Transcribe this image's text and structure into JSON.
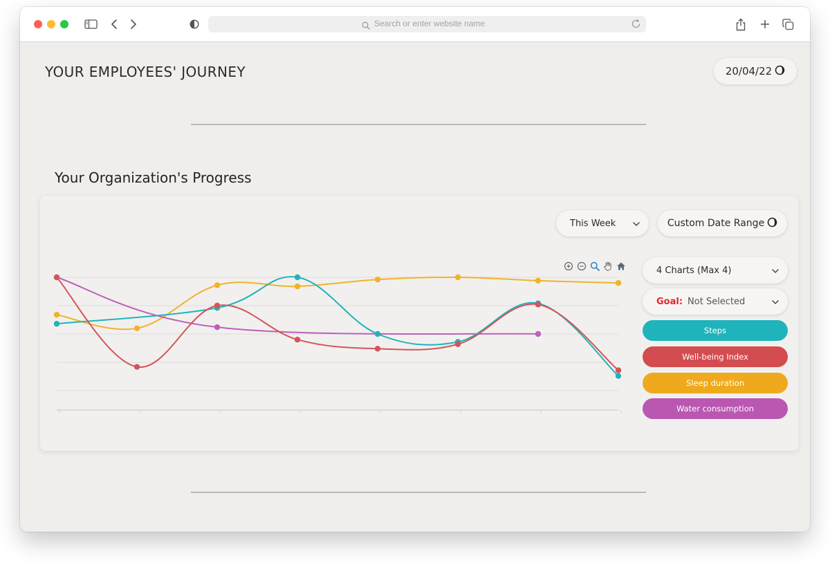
{
  "browser": {
    "url_placeholder": "Search or enter website name"
  },
  "header": {
    "title": "YOUR EMPLOYEES' JOURNEY",
    "date": "20/04/22"
  },
  "section": {
    "title": "Your Organization's Progress"
  },
  "controls": {
    "period_select": "This Week",
    "custom_range": "Custom Date Range",
    "charts_select": "4 Charts (Max 4)",
    "goal_label": "Goal:",
    "goal_value": "Not Selected"
  },
  "series_buttons": [
    {
      "label": "Steps",
      "color": "#1fb4bc"
    },
    {
      "label": "Well-being Index",
      "color": "#d34c4f"
    },
    {
      "label": "Sleep duration",
      "color": "#eea91c"
    },
    {
      "label": "Water consumption",
      "color": "#b957b1"
    }
  ],
  "chart_data": {
    "type": "line",
    "x": [
      1,
      2,
      3,
      4,
      5,
      6,
      7,
      8
    ],
    "ylim": [
      0,
      100
    ],
    "grid": true,
    "series": [
      {
        "key": "steps",
        "color": "#21b3bb",
        "points": [
          [
            1,
            59
          ],
          [
            3,
            73
          ],
          [
            4,
            100
          ],
          [
            5,
            50
          ],
          [
            6,
            43
          ],
          [
            7,
            77
          ],
          [
            8,
            13
          ]
        ]
      },
      {
        "key": "wellbeing",
        "color": "#d35459",
        "points": [
          [
            1,
            100
          ],
          [
            2,
            21
          ],
          [
            3,
            75
          ],
          [
            4,
            45
          ],
          [
            5,
            37
          ],
          [
            6,
            41
          ],
          [
            7,
            76
          ],
          [
            8,
            18
          ]
        ]
      },
      {
        "key": "sleep",
        "color": "#f0b32a",
        "points": [
          [
            1,
            67
          ],
          [
            2,
            55
          ],
          [
            3,
            93
          ],
          [
            4,
            92
          ],
          [
            5,
            98
          ],
          [
            6,
            100
          ],
          [
            7,
            97
          ],
          [
            8,
            95
          ]
        ]
      },
      {
        "key": "water",
        "color": "#bd5fbc",
        "points": [
          [
            1,
            100
          ],
          [
            3,
            56
          ],
          [
            7,
            50
          ]
        ]
      }
    ]
  }
}
